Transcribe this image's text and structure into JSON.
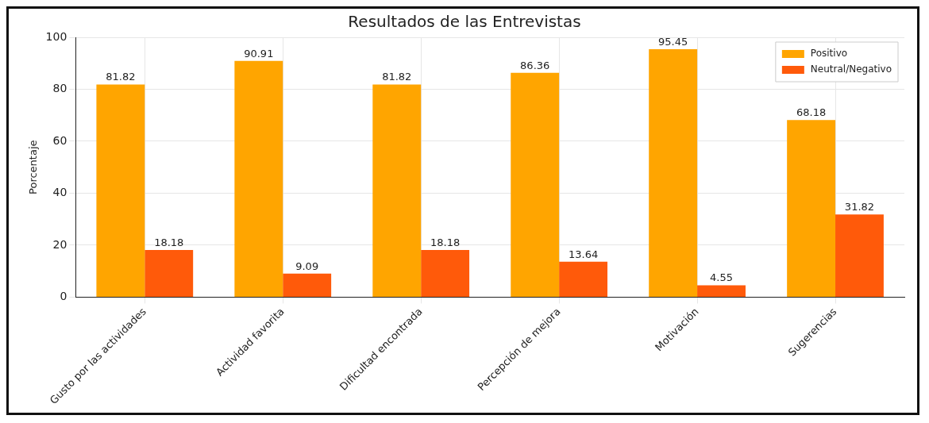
{
  "chart_data": {
    "type": "bar",
    "title": "Resultados de las Entrevistas",
    "ylabel": "Porcentaje",
    "categories": [
      "Gusto por las actividades",
      "Actividad favorita",
      "Dificultad encontrada",
      "Percepción de mejora",
      "Motivación",
      "Sugerencias"
    ],
    "series": [
      {
        "name": "Positivo",
        "color": "#ffa500",
        "values": [
          81.82,
          90.91,
          81.82,
          86.36,
          95.45,
          68.18
        ]
      },
      {
        "name": "Neutral/Negativo",
        "color": "#ff5a0a",
        "values": [
          18.18,
          9.09,
          18.18,
          13.64,
          4.55,
          31.82
        ]
      }
    ],
    "ylim": [
      0,
      100
    ],
    "yticks": [
      0,
      20,
      40,
      60,
      80,
      100
    ],
    "grid": true,
    "legend": "top right",
    "data_labels": true
  }
}
